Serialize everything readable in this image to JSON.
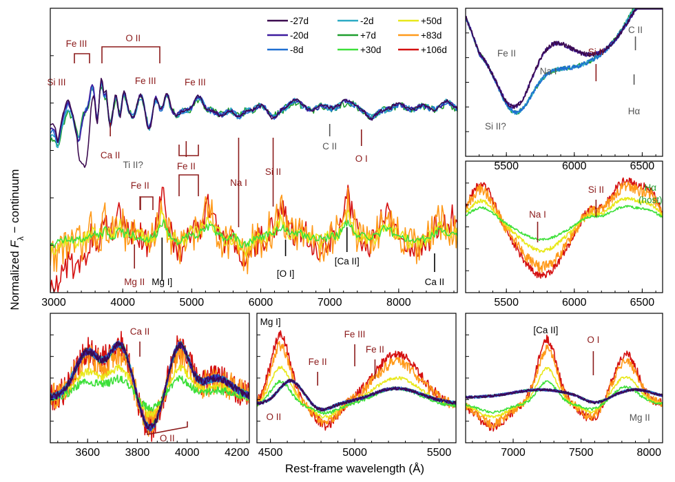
{
  "chart_data": {
    "type": "line",
    "ylabel": "Normalized F_λ − continuum",
    "ylabel_parts": {
      "prefix": "Normalized ",
      "symbol": "F",
      "sub": "λ",
      "suffix": " − continuum"
    },
    "xlabel": "Rest-frame wavelength (Å)",
    "series": [
      {
        "name": "-27d",
        "color": "#3b0a4f",
        "group": "photospheric"
      },
      {
        "name": "-20d",
        "color": "#3d1a9e",
        "group": "photospheric"
      },
      {
        "name": "-8d",
        "color": "#1f6fd1",
        "group": "photospheric"
      },
      {
        "name": "-2d",
        "color": "#2aa9c4",
        "group": "photospheric"
      },
      {
        "name": "+7d",
        "color": "#1e9e2e",
        "group": "photospheric"
      },
      {
        "name": "+30d",
        "color": "#3de03a",
        "group": "nebular"
      },
      {
        "name": "+50d",
        "color": "#e8e819",
        "group": "nebular"
      },
      {
        "name": "+83d",
        "color": "#ff9a1a",
        "group": "nebular"
      },
      {
        "name": "+106d",
        "color": "#d41010",
        "group": "nebular"
      }
    ],
    "panels": [
      {
        "id": "main",
        "xlim": [
          2950,
          8850
        ],
        "xticks": [
          3000,
          4000,
          5000,
          6000,
          7000,
          8000
        ],
        "annotations": [
          {
            "text": "Si III",
            "x": 3040,
            "color": "#8b1a1a",
            "pos": "upper"
          },
          {
            "text": "Fe III",
            "x": 3330,
            "color": "#8b1a1a",
            "pos": "upper"
          },
          {
            "text": "O II",
            "x": 4150,
            "color": "#8b1a1a",
            "pos": "upper"
          },
          {
            "text": "Fe III",
            "x": 4330,
            "color": "#8b1a1a",
            "pos": "upper"
          },
          {
            "text": "Fe III",
            "x": 5050,
            "color": "#8b1a1a",
            "pos": "upper"
          },
          {
            "text": "Ca II",
            "x": 3820,
            "color": "#8b1a1a",
            "pos": "upper-below"
          },
          {
            "text": "Fe II",
            "x": 4920,
            "color": "#8b1a1a",
            "pos": "upper-below"
          },
          {
            "text": "C II",
            "x": 7000,
            "color": "#555555",
            "pos": "upper-below"
          },
          {
            "text": "O I",
            "x": 7460,
            "color": "#8b1a1a",
            "pos": "upper-below"
          },
          {
            "text": "Ti II?",
            "x": 4150,
            "color": "#555555",
            "pos": "lower-above"
          },
          {
            "text": "Fe II",
            "x": 4250,
            "color": "#8b1a1a",
            "pos": "lower-above"
          },
          {
            "text": "Na I",
            "x": 5680,
            "color": "#8b1a1a",
            "pos": "lower-above"
          },
          {
            "text": "Si II",
            "x": 6180,
            "color": "#8b1a1a",
            "pos": "lower-above"
          },
          {
            "text": "Mg II",
            "x": 4170,
            "color": "#8b1a1a",
            "pos": "lower-below"
          },
          {
            "text": "Mg I]",
            "x": 4570,
            "color": "#000000",
            "pos": "lower-below"
          },
          {
            "text": "[O I]",
            "x": 6360,
            "color": "#000000",
            "pos": "lower-below"
          },
          {
            "text": "[Ca II]",
            "x": 7250,
            "color": "#000000",
            "pos": "lower-below"
          },
          {
            "text": "Ca II",
            "x": 8520,
            "color": "#000000",
            "pos": "lower-below"
          }
        ]
      },
      {
        "id": "top-right",
        "xlim": [
          5200,
          6650
        ],
        "xticks": [
          5500,
          6000,
          6500
        ],
        "annotations": [
          {
            "text": "Fe II",
            "x": 5380,
            "color": "#555555"
          },
          {
            "text": "Na I",
            "x": 5860,
            "color": "#555555"
          },
          {
            "text": "Si II",
            "x": 6160,
            "color": "#8b1a1a"
          },
          {
            "text": "C II",
            "x": 6450,
            "color": "#555555"
          },
          {
            "text": "Si II?",
            "x": 5420,
            "color": "#555555"
          },
          {
            "text": "Hα",
            "x": 6440,
            "color": "#555555"
          }
        ]
      },
      {
        "id": "mid-right",
        "xlim": [
          5200,
          6650
        ],
        "xticks": [
          5500,
          6000,
          6500
        ],
        "annotations": [
          {
            "text": "Na I",
            "x": 5730,
            "color": "#8b1a1a"
          },
          {
            "text": "Si II",
            "x": 6160,
            "color": "#8b1a1a"
          },
          {
            "text": "Hα",
            "x": 6560,
            "color": "#1e9e2e"
          },
          {
            "text": "(host)",
            "x": 6560,
            "color": "#1e9e2e"
          }
        ]
      },
      {
        "id": "bottom-left",
        "xlim": [
          3450,
          4250
        ],
        "xticks": [
          3600,
          3800,
          4000,
          4200
        ],
        "annotations": [
          {
            "text": "Ca II",
            "x": 3810,
            "color": "#8b1a1a"
          },
          {
            "text": "O II",
            "x": 3920,
            "color": "#8b1a1a"
          }
        ]
      },
      {
        "id": "bottom-mid",
        "xlim": [
          4420,
          5600
        ],
        "xticks": [
          4500,
          5000,
          5500
        ],
        "annotations": [
          {
            "text": "Mg I]",
            "x": 4500,
            "color": "#000000"
          },
          {
            "text": "Fe III",
            "x": 5000,
            "color": "#8b1a1a"
          },
          {
            "text": "Fe II",
            "x": 4780,
            "color": "#8b1a1a"
          },
          {
            "text": "Fe II",
            "x": 5120,
            "color": "#8b1a1a"
          },
          {
            "text": "O II",
            "x": 4540,
            "color": "#8b1a1a"
          }
        ]
      },
      {
        "id": "bottom-right",
        "xlim": [
          6650,
          8100
        ],
        "xticks": [
          7000,
          7500,
          8000
        ],
        "annotations": [
          {
            "text": "[Ca II]",
            "x": 7240,
            "color": "#000000"
          },
          {
            "text": "O I",
            "x": 7590,
            "color": "#8b1a1a"
          },
          {
            "text": "Mg II",
            "x": 7830,
            "color": "#555555"
          }
        ]
      }
    ]
  }
}
